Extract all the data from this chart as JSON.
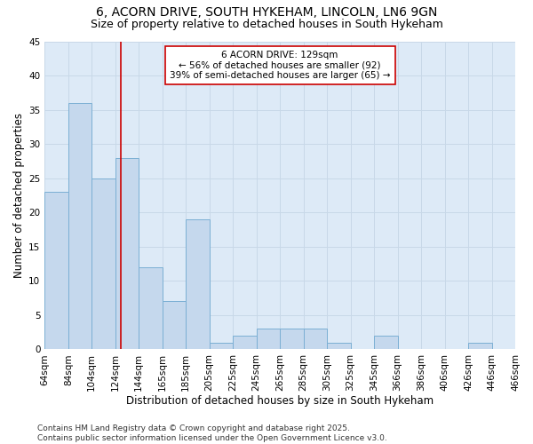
{
  "title": "6, ACORN DRIVE, SOUTH HYKEHAM, LINCOLN, LN6 9GN",
  "subtitle": "Size of property relative to detached houses in South Hykeham",
  "xlabel": "Distribution of detached houses by size in South Hykeham",
  "ylabel": "Number of detached properties",
  "bar_values": [
    23,
    36,
    25,
    28,
    12,
    7,
    19,
    1,
    2,
    3,
    3,
    3,
    1,
    0,
    2,
    0,
    0,
    0,
    1,
    0
  ],
  "bin_labels": [
    "64sqm",
    "84sqm",
    "104sqm",
    "124sqm",
    "144sqm",
    "165sqm",
    "185sqm",
    "205sqm",
    "225sqm",
    "245sqm",
    "265sqm",
    "285sqm",
    "305sqm",
    "325sqm",
    "345sqm",
    "366sqm",
    "386sqm",
    "406sqm",
    "426sqm",
    "446sqm",
    "466sqm"
  ],
  "bin_positions": [
    0,
    1,
    2,
    3,
    4,
    5,
    6,
    7,
    8,
    9,
    10,
    11,
    12,
    13,
    14,
    15,
    16,
    17,
    18,
    19,
    20
  ],
  "bar_color": "#c5d8ed",
  "bar_edge_color": "#7bafd4",
  "vline_bin": 3.25,
  "vline_color": "#cc0000",
  "annotation_text": "6 ACORN DRIVE: 129sqm\n← 56% of detached houses are smaller (92)\n39% of semi-detached houses are larger (65) →",
  "annotation_box_color": "#ffffff",
  "annotation_box_edge": "#cc0000",
  "ylim": [
    0,
    45
  ],
  "yticks": [
    0,
    5,
    10,
    15,
    20,
    25,
    30,
    35,
    40,
    45
  ],
  "grid_color": "#c8d8e8",
  "bg_color": "#ddeaf7",
  "footer": "Contains HM Land Registry data © Crown copyright and database right 2025.\nContains public sector information licensed under the Open Government Licence v3.0.",
  "title_fontsize": 10,
  "subtitle_fontsize": 9,
  "axis_label_fontsize": 8.5,
  "tick_fontsize": 7.5,
  "annotation_fontsize": 7.5,
  "footer_fontsize": 6.5
}
